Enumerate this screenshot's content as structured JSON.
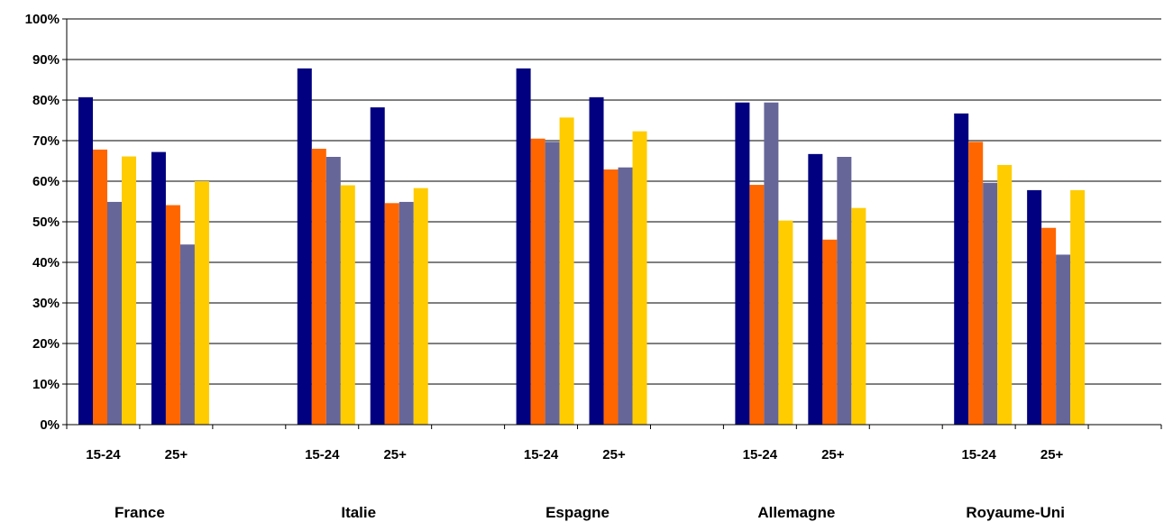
{
  "chart_data": {
    "type": "bar",
    "ylim": [
      0,
      100
    ],
    "y_unit": "%",
    "y_ticks": [
      "0%",
      "10%",
      "20%",
      "30%",
      "40%",
      "50%",
      "60%",
      "70%",
      "80%",
      "90%",
      "100%"
    ],
    "grid": true,
    "groups": [
      {
        "name": "France",
        "categories": [
          "15-24",
          "25+"
        ]
      },
      {
        "name": "Italie",
        "categories": [
          "15-24",
          "25+"
        ]
      },
      {
        "name": "Espagne",
        "categories": [
          "15-24",
          "25+"
        ]
      },
      {
        "name": "Allemagne",
        "categories": [
          "15-24",
          "25+"
        ]
      },
      {
        "name": "Royaume-Uni",
        "categories": [
          "15-24",
          "25+"
        ]
      }
    ],
    "categories": [
      "France 15-24",
      "France 25+",
      "Italie 15-24",
      "Italie 25+",
      "Espagne 15-24",
      "Espagne 25+",
      "Allemagne 15-24",
      "Allemagne 25+",
      "Royaume-Uni 15-24",
      "Royaume-Uni 25+"
    ],
    "series": [
      {
        "color": "#000080",
        "values": [
          80.7,
          67.2,
          87.8,
          78.2,
          87.8,
          80.7,
          79.4,
          66.7,
          76.7,
          57.8
        ]
      },
      {
        "color": "#FF6600",
        "values": [
          67.8,
          54.1,
          68.0,
          54.6,
          70.5,
          62.9,
          59.1,
          45.6,
          69.7,
          48.5
        ]
      },
      {
        "color": "#666699",
        "values": [
          54.9,
          44.4,
          66.0,
          54.9,
          69.7,
          63.4,
          79.4,
          66.0,
          59.6,
          41.9
        ]
      },
      {
        "color": "#FFCC00",
        "values": [
          66.1,
          60.0,
          59.0,
          58.3,
          75.7,
          72.3,
          50.3,
          53.4,
          64.0,
          57.8
        ]
      }
    ]
  }
}
